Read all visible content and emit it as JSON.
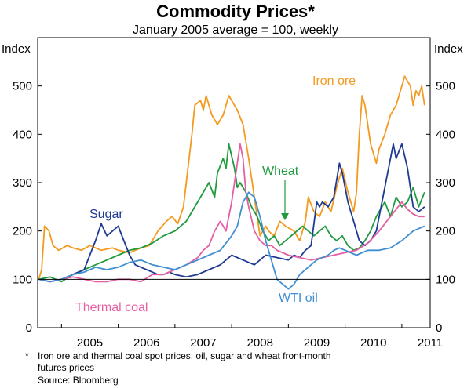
{
  "chart_data": {
    "type": "line",
    "title": "Commodity Prices*",
    "subtitle": "January 2005 average = 100, weekly",
    "ylabel_left": "Index",
    "ylabel_right": "Index",
    "ylim": [
      0,
      600
    ],
    "yticks": [
      0,
      100,
      200,
      300,
      400,
      500
    ],
    "xlim": [
      2004.58,
      2011.5
    ],
    "xticks": [
      "2005",
      "2006",
      "2007",
      "2008",
      "2009",
      "2010",
      "2011"
    ],
    "reference_line": 100,
    "series": [
      {
        "name": "Iron ore",
        "color": "#f39a1f",
        "x": [
          2004.6,
          2004.65,
          2004.7,
          2004.78,
          2004.85,
          2004.95,
          2005.1,
          2005.2,
          2005.35,
          2005.5,
          2005.7,
          2005.9,
          2006.0,
          2006.2,
          2006.4,
          2006.55,
          2006.7,
          2006.85,
          2006.95,
          2007.05,
          2007.15,
          2007.2,
          2007.3,
          2007.35,
          2007.45,
          2007.5,
          2007.55,
          2007.65,
          2007.75,
          2007.85,
          2007.95,
          2008.0,
          2008.1,
          2008.2,
          2008.3,
          2008.4,
          2008.5,
          2008.6,
          2008.65,
          2008.75,
          2008.85,
          2008.95,
          2009.1,
          2009.2,
          2009.3,
          2009.35,
          2009.45,
          2009.55,
          2009.65,
          2009.75,
          2009.85,
          2009.95,
          2010.05,
          2010.15,
          2010.2,
          2010.25,
          2010.3,
          2010.35,
          2010.45,
          2010.55,
          2010.6,
          2010.7,
          2010.8,
          2010.9,
          2010.95,
          2011.05,
          2011.15,
          2011.2,
          2011.25,
          2011.3,
          2011.35,
          2011.4
        ],
        "values": [
          100,
          120,
          210,
          200,
          170,
          160,
          170,
          165,
          160,
          170,
          160,
          165,
          160,
          155,
          165,
          170,
          200,
          220,
          230,
          215,
          250,
          300,
          400,
          460,
          470,
          450,
          480,
          440,
          420,
          440,
          480,
          470,
          450,
          420,
          350,
          270,
          190,
          210,
          200,
          190,
          220,
          210,
          200,
          180,
          220,
          270,
          240,
          230,
          260,
          240,
          290,
          330,
          280,
          240,
          280,
          400,
          480,
          460,
          380,
          340,
          370,
          400,
          440,
          460,
          480,
          520,
          500,
          460,
          490,
          480,
          500,
          460
        ]
      },
      {
        "name": "Wheat",
        "color": "#1f9a3e",
        "x": [
          2004.6,
          2004.8,
          2005.0,
          2005.2,
          2005.4,
          2005.6,
          2005.8,
          2006.0,
          2006.2,
          2006.4,
          2006.6,
          2006.8,
          2007.0,
          2007.1,
          2007.2,
          2007.3,
          2007.4,
          2007.5,
          2007.6,
          2007.7,
          2007.75,
          2007.85,
          2007.9,
          2007.95,
          2008.05,
          2008.1,
          2008.15,
          2008.25,
          2008.35,
          2008.45,
          2008.55,
          2008.65,
          2008.75,
          2008.85,
          2008.95,
          2009.05,
          2009.15,
          2009.25,
          2009.35,
          2009.45,
          2009.55,
          2009.65,
          2009.75,
          2009.85,
          2009.95,
          2010.05,
          2010.15,
          2010.25,
          2010.35,
          2010.45,
          2010.55,
          2010.6,
          2010.7,
          2010.8,
          2010.9,
          2011.0,
          2011.1,
          2011.2,
          2011.3,
          2011.4
        ],
        "values": [
          100,
          105,
          95,
          110,
          120,
          130,
          140,
          150,
          160,
          165,
          175,
          190,
          200,
          210,
          220,
          240,
          260,
          280,
          300,
          270,
          320,
          350,
          330,
          380,
          330,
          290,
          300,
          280,
          250,
          230,
          200,
          180,
          190,
          170,
          180,
          190,
          200,
          210,
          200,
          190,
          200,
          210,
          190,
          180,
          190,
          170,
          160,
          165,
          180,
          200,
          230,
          240,
          260,
          230,
          270,
          250,
          260,
          290,
          250,
          280
        ]
      },
      {
        "name": "Sugar",
        "color": "#1f3a93",
        "x": [
          2004.6,
          2004.8,
          2005.0,
          2005.2,
          2005.4,
          2005.6,
          2005.7,
          2005.8,
          2005.9,
          2006.0,
          2006.1,
          2006.2,
          2006.3,
          2006.4,
          2006.5,
          2006.6,
          2006.7,
          2006.8,
          2006.9,
          2007.0,
          2007.2,
          2007.4,
          2007.6,
          2007.8,
          2008.0,
          2008.2,
          2008.4,
          2008.6,
          2008.8,
          2009.0,
          2009.1,
          2009.2,
          2009.3,
          2009.4,
          2009.5,
          2009.55,
          2009.6,
          2009.7,
          2009.8,
          2009.9,
          2009.95,
          2010.05,
          2010.15,
          2010.25,
          2010.35,
          2010.45,
          2010.55,
          2010.65,
          2010.75,
          2010.85,
          2010.9,
          2011.0,
          2011.1,
          2011.2,
          2011.3,
          2011.4
        ],
        "values": [
          100,
          95,
          100,
          110,
          120,
          180,
          215,
          190,
          200,
          210,
          180,
          150,
          130,
          125,
          120,
          115,
          110,
          110,
          115,
          110,
          105,
          110,
          120,
          130,
          150,
          140,
          130,
          150,
          145,
          140,
          150,
          145,
          160,
          170,
          260,
          250,
          260,
          250,
          270,
          340,
          320,
          260,
          220,
          180,
          170,
          180,
          200,
          260,
          320,
          380,
          350,
          380,
          330,
          250,
          240,
          250
        ]
      },
      {
        "name": "Thermal coal",
        "color": "#e65fa3",
        "x": [
          2004.6,
          2004.8,
          2005.0,
          2005.2,
          2005.4,
          2005.6,
          2005.8,
          2006.0,
          2006.2,
          2006.4,
          2006.6,
          2006.8,
          2007.0,
          2007.2,
          2007.4,
          2007.5,
          2007.6,
          2007.7,
          2007.8,
          2007.9,
          2008.0,
          2008.05,
          2008.1,
          2008.15,
          2008.2,
          2008.25,
          2008.3,
          2008.4,
          2008.5,
          2008.6,
          2008.7,
          2008.8,
          2009.0,
          2009.2,
          2009.4,
          2009.6,
          2009.8,
          2010.0,
          2010.2,
          2010.4,
          2010.6,
          2010.8,
          2011.0,
          2011.1,
          2011.2,
          2011.3,
          2011.4
        ],
        "values": [
          100,
          95,
          100,
          105,
          100,
          95,
          95,
          100,
          100,
          95,
          110,
          110,
          120,
          130,
          145,
          160,
          170,
          200,
          220,
          200,
          260,
          300,
          340,
          380,
          350,
          280,
          250,
          200,
          180,
          170,
          170,
          160,
          150,
          145,
          140,
          145,
          150,
          155,
          160,
          175,
          200,
          230,
          260,
          245,
          235,
          230,
          230
        ]
      },
      {
        "name": "WTI oil",
        "color": "#3f8fd2",
        "x": [
          2004.6,
          2004.8,
          2005.0,
          2005.2,
          2005.4,
          2005.6,
          2005.8,
          2006.0,
          2006.2,
          2006.4,
          2006.6,
          2006.8,
          2007.0,
          2007.2,
          2007.4,
          2007.6,
          2007.8,
          2008.0,
          2008.1,
          2008.2,
          2008.3,
          2008.4,
          2008.5,
          2008.6,
          2008.7,
          2008.8,
          2008.9,
          2009.0,
          2009.1,
          2009.2,
          2009.3,
          2009.4,
          2009.5,
          2009.6,
          2009.7,
          2009.8,
          2009.9,
          2010.0,
          2010.2,
          2010.4,
          2010.6,
          2010.8,
          2011.0,
          2011.1,
          2011.2,
          2011.3,
          2011.4
        ],
        "values": [
          100,
          95,
          100,
          110,
          115,
          125,
          120,
          125,
          135,
          140,
          130,
          125,
          120,
          130,
          140,
          150,
          160,
          190,
          210,
          260,
          280,
          270,
          230,
          180,
          140,
          100,
          90,
          80,
          90,
          110,
          120,
          130,
          140,
          145,
          150,
          160,
          165,
          160,
          150,
          160,
          160,
          165,
          180,
          190,
          200,
          205,
          210
        ]
      }
    ],
    "annotations": {
      "iron_ore": "Iron ore",
      "wheat": "Wheat",
      "sugar": "Sugar",
      "thermal_coal": "Thermal coal",
      "wti_oil": "WTI oil"
    }
  },
  "footnote": {
    "marker": "*",
    "line1": "Iron ore and thermal coal spot prices; oil, sugar and wheat front-month",
    "line2": "futures prices"
  },
  "source": "Source: Bloomberg"
}
